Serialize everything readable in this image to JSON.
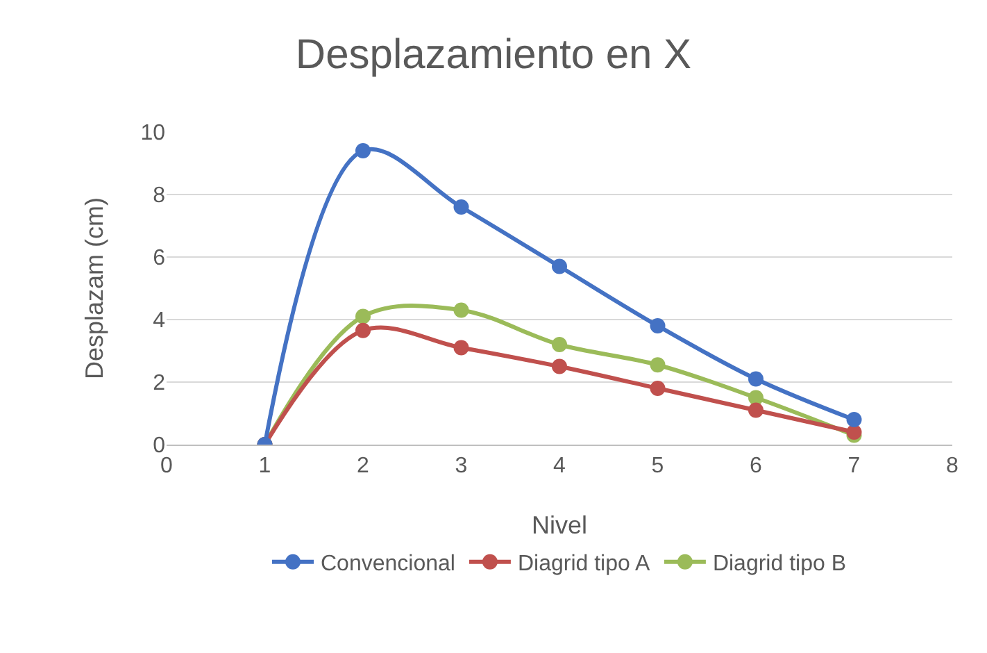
{
  "chart_data": {
    "type": "line",
    "title": "Desplazamiento en X",
    "xlabel": "Nivel",
    "ylabel": "Desplazam (cm)",
    "x": [
      1,
      2,
      3,
      4,
      5,
      6,
      7
    ],
    "series": [
      {
        "name": "Convencional",
        "color": "#4472c4",
        "values": [
          0,
          9.4,
          7.6,
          5.7,
          3.8,
          2.1,
          0.8
        ]
      },
      {
        "name": "Diagrid tipo A",
        "color": "#c0504d",
        "values": [
          0,
          3.65,
          3.1,
          2.5,
          1.8,
          1.1,
          0.4
        ]
      },
      {
        "name": "Diagrid tipo B",
        "color": "#9bbb59",
        "values": [
          0,
          4.1,
          4.3,
          3.2,
          2.55,
          1.5,
          0.3
        ]
      }
    ],
    "xlim": [
      0,
      8
    ],
    "xticks": [
      0,
      1,
      2,
      3,
      4,
      5,
      6,
      7,
      8
    ],
    "ylim": [
      0,
      10
    ],
    "yticks": [
      0,
      2,
      4,
      6,
      8,
      10
    ],
    "grid": "y",
    "legend": "bottom",
    "marker": "circle",
    "line_style": "solid"
  }
}
